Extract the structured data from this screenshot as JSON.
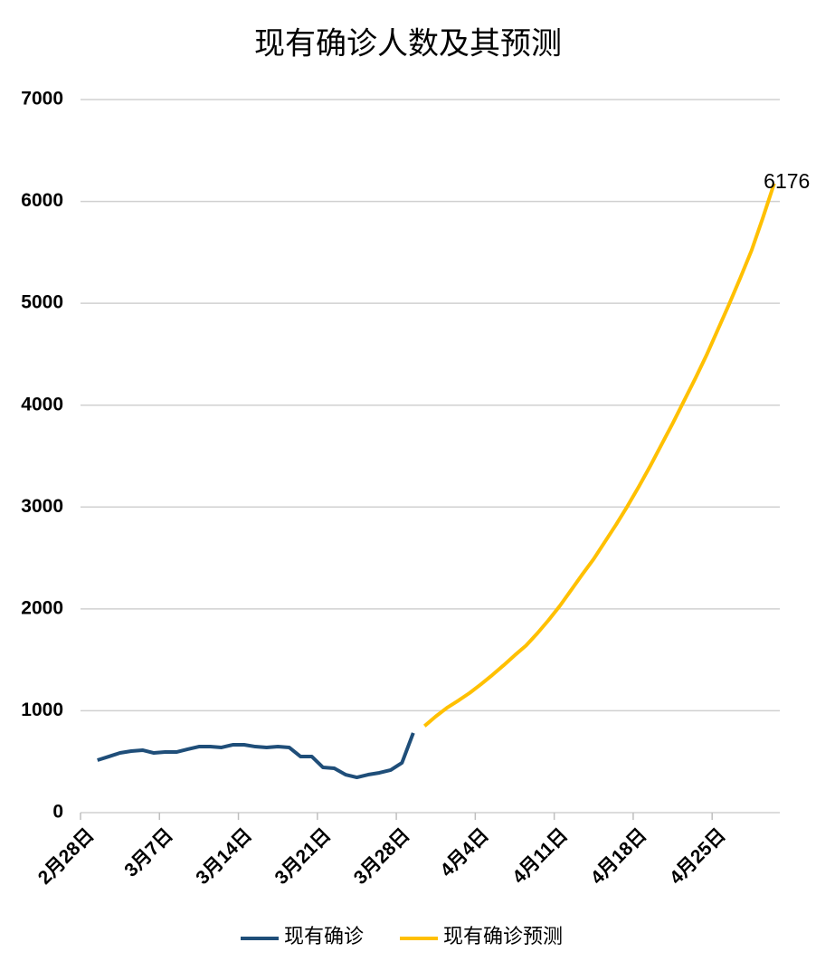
{
  "chart_data": {
    "type": "line",
    "title": "现有确诊人数及其预测",
    "categories": [
      "2月28日",
      null,
      null,
      null,
      null,
      null,
      null,
      "3月7日",
      null,
      null,
      null,
      null,
      null,
      null,
      "3月14日",
      null,
      null,
      null,
      null,
      null,
      null,
      "3月21日",
      null,
      null,
      null,
      null,
      null,
      null,
      "3月28日",
      null,
      null,
      null,
      null,
      null,
      null,
      "4月4日",
      null,
      null,
      null,
      null,
      null,
      null,
      "4月11日",
      null,
      null,
      null,
      null,
      null,
      null,
      "4月18日",
      null,
      null,
      null,
      null,
      null,
      null,
      "4月25日",
      null,
      null,
      null,
      null,
      null
    ],
    "series": [
      {
        "name": "现有确诊",
        "color": "#1f4e79",
        "values": [
          null,
          515,
          550,
          586,
          604,
          613,
          586,
          595,
          595,
          622,
          648,
          648,
          640,
          666,
          666,
          648,
          640,
          648,
          640,
          551,
          551,
          444,
          435,
          373,
          346,
          373,
          391,
          418,
          489,
          782,
          null,
          null,
          null,
          null,
          null,
          null,
          null,
          null,
          null,
          null,
          null,
          null,
          null,
          null,
          null,
          null,
          null,
          null,
          null,
          null,
          null,
          null,
          null,
          null,
          null,
          null,
          null,
          null,
          null,
          null,
          null,
          null
        ]
      },
      {
        "name": "现有确诊预测",
        "color": "#ffc000",
        "values": [
          null,
          null,
          null,
          null,
          null,
          null,
          null,
          null,
          null,
          null,
          null,
          null,
          null,
          null,
          null,
          null,
          null,
          null,
          null,
          null,
          null,
          null,
          null,
          null,
          null,
          null,
          null,
          null,
          null,
          null,
          850,
          945,
          1030,
          1100,
          1175,
          1260,
          1350,
          1445,
          1545,
          1640,
          1760,
          1890,
          2030,
          2185,
          2340,
          2490,
          2660,
          2830,
          3010,
          3200,
          3400,
          3610,
          3820,
          4040,
          4260,
          4490,
          4740,
          4990,
          5250,
          5520,
          5840,
          6176
        ]
      }
    ],
    "ylim": [
      0,
      7000
    ],
    "yticks": [
      0,
      1000,
      2000,
      3000,
      4000,
      5000,
      6000,
      7000
    ],
    "grid": true,
    "legend": "bottom"
  }
}
